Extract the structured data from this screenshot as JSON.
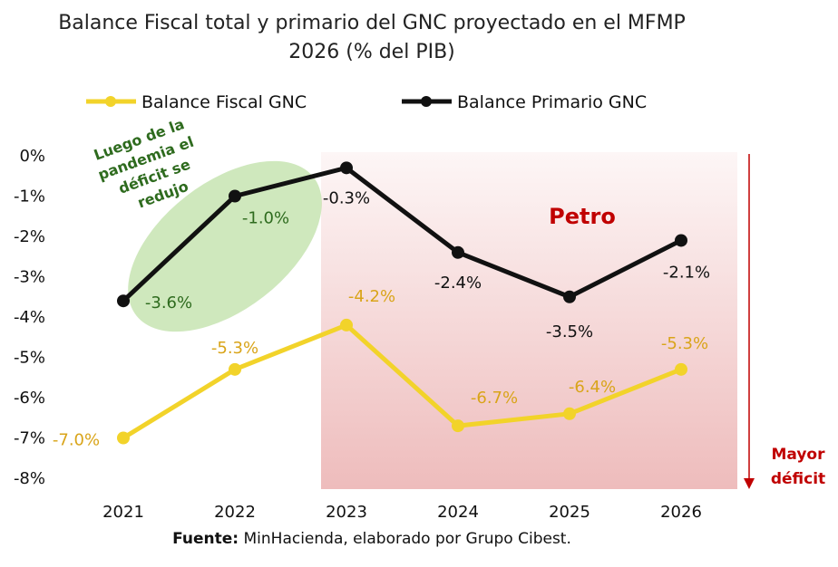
{
  "chart_data": {
    "type": "line",
    "title_lines": [
      "Balance Fiscal total y primario del GNC proyectado en el MFMP",
      "2026 (% del PIB)"
    ],
    "categories": [
      "2021",
      "2022",
      "2023",
      "2024",
      "2025",
      "2026"
    ],
    "y_ticks": [
      "0%",
      "-1%",
      "-2%",
      "-3%",
      "-4%",
      "-5%",
      "-6%",
      "-7%",
      "-8%"
    ],
    "ylim": [
      -8,
      0
    ],
    "series": [
      {
        "name": "Balance Fiscal GNC",
        "color": "#f2d32a",
        "label_color": "#d9a419",
        "values": [
          -7.0,
          -5.3,
          -4.2,
          -6.7,
          -6.4,
          -5.3
        ],
        "labels": [
          "-7.0%",
          "-5.3%",
          "-4.2%",
          "-6.7%",
          "-6.4%",
          "-5.3%"
        ]
      },
      {
        "name": "Balance Primario GNC",
        "color": "#111111",
        "label_color": "#111111",
        "values": [
          -3.6,
          -1.0,
          -0.3,
          -2.4,
          -3.5,
          -2.1
        ],
        "labels": [
          "-3.6%",
          "-1.0%",
          "-0.3%",
          "-2.4%",
          "-3.5%",
          "-2.1%"
        ]
      }
    ],
    "highlight_region": {
      "label": "Petro",
      "from_category": "2023",
      "to_category": "2026"
    },
    "annotation": {
      "lines": [
        "Luego de la",
        "pandemia el",
        "déficit se",
        "redujo"
      ],
      "color": "#2e6b1e",
      "ellipse_color": "#9fd27c"
    },
    "side_note": {
      "lines": [
        "Mayor",
        "déficit"
      ],
      "color": "#c00000"
    },
    "grid": false,
    "legend_position": "top"
  },
  "source": {
    "bold": "Fuente:",
    "text": " MinHacienda, elaborado por Grupo Cibest."
  }
}
